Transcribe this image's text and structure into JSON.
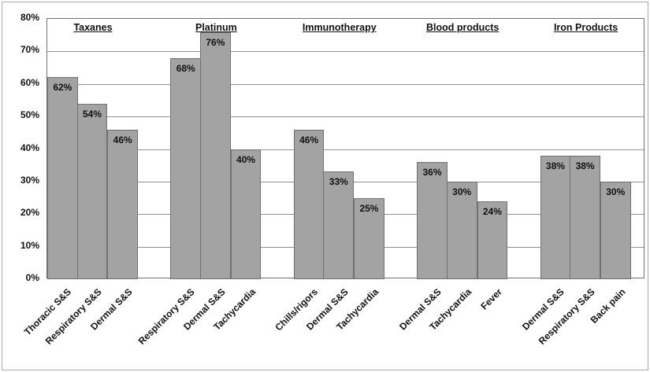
{
  "chart_data": {
    "type": "bar",
    "title": "",
    "xlabel": "",
    "ylabel": "",
    "ylim": [
      0,
      80
    ],
    "ytick_step": 10,
    "ytick_labels": [
      "0%",
      "10%",
      "20%",
      "30%",
      "40%",
      "50%",
      "60%",
      "70%",
      "80%"
    ],
    "grid": true,
    "legend": "none",
    "groups": [
      {
        "label": "Taxanes",
        "bars": [
          {
            "category": "Thoracic S&S",
            "value": 62,
            "value_label": "62%"
          },
          {
            "category": "Respiratory S&S",
            "value": 54,
            "value_label": "54%"
          },
          {
            "category": "Dermal S&S",
            "value": 46,
            "value_label": "46%"
          }
        ]
      },
      {
        "label": "Platinum",
        "bars": [
          {
            "category": "Respiratory S&S",
            "value": 68,
            "value_label": "68%"
          },
          {
            "category": "Dermal S&S",
            "value": 76,
            "value_label": "76%"
          },
          {
            "category": "Tachycardia",
            "value": 40,
            "value_label": "40%"
          }
        ]
      },
      {
        "label": "Immunotherapy",
        "bars": [
          {
            "category": "Chills/rigors",
            "value": 46,
            "value_label": "46%"
          },
          {
            "category": "Dermal S&S",
            "value": 33,
            "value_label": "33%"
          },
          {
            "category": "Tachycardia",
            "value": 25,
            "value_label": "25%"
          }
        ]
      },
      {
        "label": "Blood products",
        "bars": [
          {
            "category": "Dermal S&S",
            "value": 36,
            "value_label": "36%"
          },
          {
            "category": "Tachycardia",
            "value": 30,
            "value_label": "30%"
          },
          {
            "category": "Fever",
            "value": 24,
            "value_label": "24%"
          }
        ]
      },
      {
        "label": "Iron Products",
        "bars": [
          {
            "category": "Dermal S&S",
            "value": 38,
            "value_label": "38%"
          },
          {
            "category": "Respiratory S&S",
            "value": 38,
            "value_label": "38%"
          },
          {
            "category": "Back pain",
            "value": 30,
            "value_label": "30%"
          }
        ]
      }
    ],
    "colors": {
      "bar_fill": "#a3a3a3",
      "bar_border": "#707070",
      "gridline": "#909090",
      "plot_border": "#707070",
      "text": "#111111",
      "frame_border": "#ababab",
      "background": "#ffffff"
    }
  }
}
